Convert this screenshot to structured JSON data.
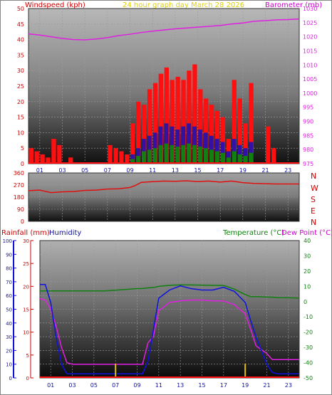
{
  "header": {
    "windspeed_label": "Windspeed (kph)",
    "title": "24 hour graph day   March 28 2026",
    "barometer_label": "Barometer (mb)"
  },
  "compass_labels": [
    "N",
    "W",
    "S",
    "E",
    "N"
  ],
  "lower_header": {
    "rainfall_label": "Rainfall (mm)",
    "humidity_label": "Humidity",
    "temperature_label": "Temperature (°C)",
    "dewpoint_label": "Dew Point (°C)"
  },
  "colors": {
    "wind_gust": "#ff1010",
    "wind_avg": "#1010c0",
    "wind_calm": "#108010",
    "barometer": "#e020e0",
    "direction": "#e01010",
    "humidity": "#1010e0",
    "temperature": "#108010",
    "dewpoint": "#e020e0",
    "rain": "#e0c000",
    "header_red": "#cc0000",
    "title_yellow": "#e0d000"
  },
  "chart_data": [
    {
      "type": "bar",
      "name_hint": "wind",
      "title": "24 hour graph day   March 28 2026",
      "ylabel": "Windspeed (kph)",
      "ylim": [
        0,
        50
      ],
      "yticks": [
        0,
        5,
        10,
        15,
        20,
        25,
        30,
        35,
        40,
        45,
        50
      ],
      "xlim": [
        0,
        24
      ],
      "xticks": [
        "01",
        "03",
        "05",
        "07",
        "09",
        "11",
        "13",
        "15",
        "17",
        "19",
        "21",
        "23"
      ],
      "series": [
        {
          "x": [
            0,
            0.5,
            1,
            1.5,
            2,
            2.5,
            3,
            3.5,
            4,
            4.5,
            5,
            5.5,
            6,
            6.5,
            7,
            7.5,
            8,
            8.5,
            9,
            9.5,
            10,
            10.5,
            11,
            11.5,
            12,
            12.5,
            13,
            13.5,
            14,
            14.5,
            15,
            15.5,
            16,
            16.5,
            17,
            17.5,
            18,
            18.5,
            19,
            19.5,
            20,
            20.5,
            21,
            21.5,
            22,
            22.5,
            23,
            23.5
          ],
          "values": [
            5,
            4,
            3,
            2,
            8,
            6,
            0,
            2,
            0,
            0,
            0,
            0,
            0,
            0,
            6,
            5,
            4,
            3,
            13,
            20,
            19,
            24,
            26,
            29,
            31,
            27,
            28,
            27,
            30,
            32,
            24,
            21,
            19,
            17,
            15,
            8,
            27,
            21,
            13,
            26,
            0,
            0,
            12,
            5,
            0,
            0,
            0,
            0
          ]
        },
        {
          "x": [
            9,
            9.5,
            10,
            10.5,
            11,
            11.5,
            12,
            12.5,
            13,
            13.5,
            14,
            14.5,
            15,
            15.5,
            16,
            16.5,
            17,
            17.5,
            18,
            18.5,
            19,
            19.5
          ],
          "values": [
            3,
            5,
            8,
            9,
            10,
            12,
            13,
            12,
            11,
            12,
            13,
            12,
            11,
            10,
            9,
            8,
            7,
            4,
            8,
            6,
            5,
            7
          ]
        }
      ]
    },
    {
      "type": "line",
      "name_hint": "barometer",
      "ylabel": "Barometer (mb)",
      "ylim": [
        975,
        1030
      ],
      "yticks": [
        975,
        980,
        985,
        990,
        995,
        1000,
        1005,
        1010,
        1015,
        1020,
        1025,
        1030
      ],
      "x": [
        0,
        1,
        2,
        3,
        4,
        5,
        6,
        7,
        8,
        9,
        10,
        11,
        12,
        13,
        14,
        15,
        16,
        17,
        18,
        19,
        20,
        21,
        22,
        23,
        24
      ],
      "values": [
        1021,
        1020.6,
        1020,
        1019.4,
        1019,
        1018.9,
        1019.2,
        1019.7,
        1020.4,
        1020.9,
        1021.5,
        1022,
        1022.4,
        1022.8,
        1023.1,
        1023.4,
        1023.7,
        1024.0,
        1024.5,
        1024.9,
        1025.5,
        1025.7,
        1026.0,
        1026.1,
        1026.3
      ]
    },
    {
      "type": "line",
      "name_hint": "wind-direction",
      "yticks": [
        0,
        90,
        180,
        270,
        360
      ],
      "ylim": [
        0,
        360
      ],
      "x": [
        0,
        1,
        2,
        3,
        4,
        5,
        6,
        7,
        8,
        9,
        9.5,
        10,
        11,
        12,
        13,
        14,
        15,
        16,
        17,
        18,
        19,
        20,
        21,
        22,
        23,
        24
      ],
      "values": [
        228,
        232,
        214,
        220,
        222,
        230,
        232,
        240,
        242,
        252,
        268,
        290,
        295,
        300,
        298,
        302,
        296,
        300,
        292,
        300,
        288,
        282,
        280,
        278,
        278,
        278
      ]
    },
    {
      "type": "line",
      "name_hint": "rain-humidity-temperature",
      "rain_ylabel": "Rainfall (mm)",
      "rain_ylim": [
        0,
        30
      ],
      "rain_yticks": [
        0,
        5,
        10,
        15,
        20,
        25,
        30
      ],
      "humidity_ylabel": "Humidity",
      "humidity_ylim": [
        0,
        100
      ],
      "humidity_yticks": [
        0,
        10,
        20,
        30,
        40,
        50,
        60,
        70,
        80,
        90,
        100
      ],
      "temp_ylabel": "Temperature (°C)",
      "dew_ylabel": "Dew Point (°C)",
      "temp_ylim": [
        -50,
        40
      ],
      "temp_yticks": [
        -50,
        -40,
        -30,
        -20,
        -10,
        0,
        10,
        20,
        30,
        40
      ],
      "x": [
        0,
        0.5,
        1,
        1.5,
        2,
        2.5,
        3,
        4,
        5,
        6,
        7,
        8,
        9,
        9.5,
        10,
        10.5,
        11,
        12,
        13,
        14,
        15,
        16,
        17,
        18,
        19,
        19.5,
        20,
        21,
        21.5,
        22,
        23,
        24
      ],
      "humidity": [
        68,
        68,
        55,
        30,
        10,
        3,
        3,
        3,
        3,
        3,
        3,
        3,
        3,
        3,
        12,
        35,
        58,
        64,
        67,
        65,
        64,
        64,
        66,
        63,
        55,
        42,
        30,
        10,
        4,
        3,
        3,
        3
      ],
      "temperature": [
        7,
        7,
        7,
        7,
        7,
        7,
        7,
        7,
        7,
        7,
        7.5,
        8,
        8.5,
        8.6,
        9,
        9.2,
        10,
        10.7,
        11,
        10.9,
        10.8,
        10.7,
        10.6,
        8.2,
        4.6,
        3.3,
        3.3,
        3.0,
        2.9,
        2.6,
        2.5,
        2.3
      ],
      "dewpoint": [
        2,
        1,
        -5,
        -16,
        -30,
        -40,
        -41,
        -41,
        -41,
        -41,
        -41,
        -41,
        -41,
        -41,
        -27,
        -23,
        -6,
        -0.5,
        0.5,
        1,
        1,
        0.5,
        0.5,
        -2,
        -8,
        -18,
        -29,
        -34,
        -38,
        -38,
        -38,
        -38
      ],
      "rain_marks_x": [
        7,
        19
      ]
    }
  ]
}
